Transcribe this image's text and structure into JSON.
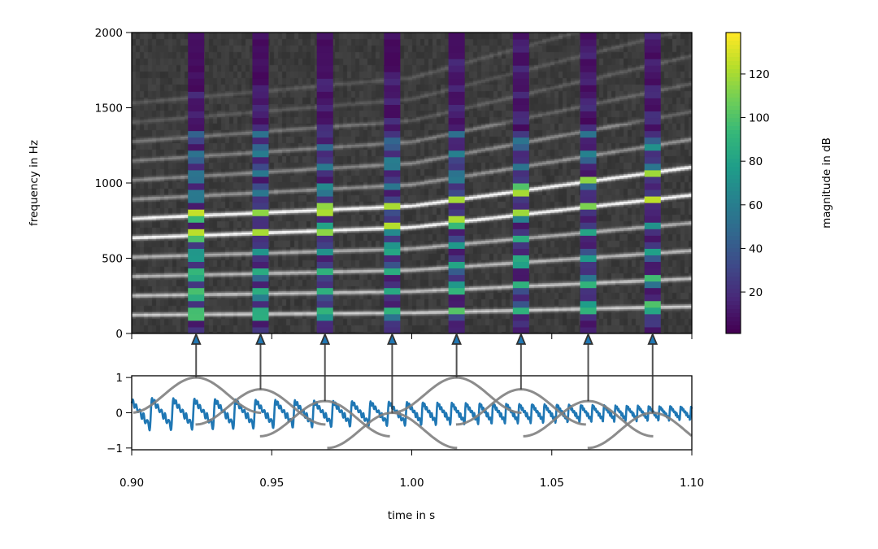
{
  "chart_data": {
    "type": "heatmap",
    "panels": [
      {
        "name": "spectrogram",
        "type": "heatmap",
        "xlim": [
          0.9,
          1.1
        ],
        "ylim": [
          0,
          2000
        ],
        "ylabel": "frequency in Hz",
        "yticks": [
          0,
          500,
          1000,
          1500,
          2000
        ],
        "ytick_labels": [
          "0",
          "500",
          "1000",
          "1500",
          "2000"
        ],
        "background_colormap": "gray",
        "highlight_colormap": "viridis",
        "fundamental_hz": {
          "t": [
            0.9,
            1.0,
            1.1
          ],
          "f0": [
            128,
            142,
            185
          ]
        },
        "harmonics": 12,
        "colorbar": {
          "label": "magnitude in dB",
          "range": [
            1,
            139
          ],
          "ticks": [
            20,
            40,
            60,
            80,
            100,
            120
          ],
          "tick_labels": [
            "20",
            "40",
            "60",
            "80",
            "100",
            "120"
          ]
        }
      },
      {
        "name": "waveform",
        "type": "line",
        "xlim": [
          0.9,
          1.1
        ],
        "ylim": [
          -1.05,
          1.05
        ],
        "xlabel": "time in s",
        "yticks": [
          -1,
          0,
          1
        ],
        "ytick_labels": [
          "−1",
          "0",
          "1"
        ],
        "xticks": [
          0.9,
          0.95,
          1.0,
          1.05,
          1.1
        ],
        "xtick_labels": [
          "0.90",
          "0.95",
          "1.00",
          "1.05",
          "1.10"
        ],
        "signal_color": "#1f77b4",
        "window_color": "#808080",
        "window_baselines": [
          0,
          -0.333,
          -0.667,
          -1,
          0,
          -0.333,
          -0.667,
          -1
        ],
        "window_half_width_s": 0.0232
      }
    ],
    "marker_times": [
      0.923,
      0.946,
      0.969,
      0.993,
      1.016,
      1.039,
      1.063,
      1.086
    ]
  }
}
